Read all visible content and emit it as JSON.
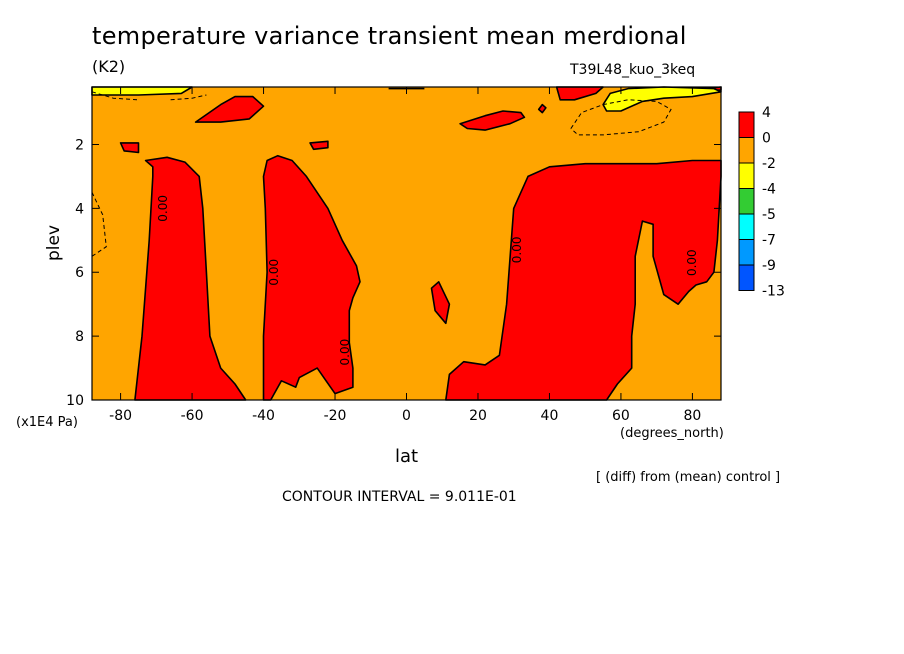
{
  "chart_data": {
    "type": "heatmap",
    "title": "temperature variance transient mean merdional",
    "units_label": "(K2)",
    "run_label": "T39L48_kuo_3keq",
    "xlabel": "lat",
    "ylabel": "plev",
    "x_units": "(degrees_north)",
    "y_units": "(x1E4 Pa)",
    "note": "[ (diff) from (mean) control ]",
    "contour_interval_text": "CONTOUR INTERVAL = 9.011E-01",
    "xlim": [
      -88,
      88
    ],
    "ylim": [
      10,
      0.2
    ],
    "x_ticks": [
      -80,
      -60,
      -40,
      -20,
      0,
      20,
      40,
      60,
      80
    ],
    "x_tick_labels": [
      "-80",
      "-60",
      "-40",
      "-20",
      "0",
      "20",
      "40",
      "60",
      "80"
    ],
    "y_ticks": [
      2,
      4,
      6,
      8,
      10
    ],
    "y_tick_labels": [
      "2",
      "4",
      "6",
      "8",
      "10"
    ],
    "background_level": "0 to -2",
    "colorbar": {
      "labels": [
        "4",
        "0",
        "-2",
        "-4",
        "-5",
        "-7",
        "-9",
        "-13"
      ],
      "colors": [
        "#ff0000",
        "#ffa500",
        "#ffff00",
        "#33cc33",
        "#00ffff",
        "#0099ff",
        "#0055ff"
      ]
    },
    "contour_labels": [
      {
        "text": "0.00",
        "lat": -68,
        "plev": 4.0
      },
      {
        "text": "0.00",
        "lat": -37,
        "plev": 6.0
      },
      {
        "text": "0.00",
        "lat": -17,
        "plev": 8.5
      },
      {
        "text": "0.00",
        "lat": 31,
        "plev": 5.3
      },
      {
        "text": "0.00",
        "lat": 80,
        "plev": 5.7
      }
    ],
    "regions": [
      {
        "level": "positive",
        "color": "#ff0000",
        "points": [
          [
            -76,
            10
          ],
          [
            -74,
            8
          ],
          [
            -72,
            5
          ],
          [
            -71,
            3
          ],
          [
            -71,
            2.7
          ],
          [
            -73,
            2.5
          ],
          [
            -67,
            2.4
          ],
          [
            -62,
            2.55
          ],
          [
            -58,
            3.0
          ],
          [
            -57,
            4.0
          ],
          [
            -56,
            6.0
          ],
          [
            -55,
            8.0
          ],
          [
            -52,
            9.0
          ],
          [
            -48,
            9.5
          ],
          [
            -45,
            10
          ]
        ]
      },
      {
        "level": "positive",
        "color": "#ff0000",
        "points": [
          [
            -40,
            10
          ],
          [
            -40,
            8
          ],
          [
            -39,
            6
          ],
          [
            -39.5,
            4
          ],
          [
            -40,
            3
          ],
          [
            -39,
            2.5
          ],
          [
            -36,
            2.35
          ],
          [
            -32,
            2.5
          ],
          [
            -28,
            3.0
          ],
          [
            -22,
            4.0
          ],
          [
            -18,
            5.0
          ],
          [
            -14,
            5.8
          ],
          [
            -13,
            6.3
          ],
          [
            -15,
            6.8
          ],
          [
            -16,
            7.2
          ],
          [
            -16,
            8.2
          ],
          [
            -15,
            9.0
          ],
          [
            -15,
            9.6
          ],
          [
            -20,
            9.8
          ],
          [
            -25,
            9.0
          ],
          [
            -30,
            9.3
          ],
          [
            -31,
            9.6
          ],
          [
            -35,
            9.4
          ],
          [
            -38,
            10
          ]
        ]
      },
      {
        "level": "positive",
        "color": "#ff0000",
        "points": [
          [
            11,
            10
          ],
          [
            12,
            9.2
          ],
          [
            16,
            8.8
          ],
          [
            22,
            8.9
          ],
          [
            26,
            8.6
          ],
          [
            28,
            7.0
          ],
          [
            30,
            4.0
          ],
          [
            34,
            3.0
          ],
          [
            40,
            2.7
          ],
          [
            50,
            2.6
          ],
          [
            60,
            2.6
          ],
          [
            70,
            2.6
          ],
          [
            80,
            2.5
          ],
          [
            88,
            2.5
          ],
          [
            88,
            3.0
          ],
          [
            87,
            5.0
          ],
          [
            86,
            6.0
          ],
          [
            84,
            6.3
          ],
          [
            81,
            6.4
          ],
          [
            79,
            6.6
          ],
          [
            76,
            7.0
          ],
          [
            72,
            6.7
          ],
          [
            69,
            5.5
          ],
          [
            69,
            4.5
          ],
          [
            66,
            4.4
          ],
          [
            64,
            5.5
          ],
          [
            64,
            7.0
          ],
          [
            63,
            8.0
          ],
          [
            63,
            9.0
          ],
          [
            59,
            9.5
          ],
          [
            56,
            10
          ]
        ]
      },
      {
        "level": "positive",
        "color": "#ff0000",
        "points": [
          [
            7,
            6.5
          ],
          [
            9,
            6.3
          ],
          [
            12,
            7.0
          ],
          [
            11,
            7.6
          ],
          [
            8,
            7.2
          ]
        ]
      },
      {
        "level": "positive",
        "color": "#ff0000",
        "points": [
          [
            -59,
            1.3
          ],
          [
            -52,
            0.75
          ],
          [
            -48,
            0.5
          ],
          [
            -43,
            0.5
          ],
          [
            -40,
            0.8
          ],
          [
            -44,
            1.2
          ],
          [
            -52,
            1.3
          ]
        ]
      },
      {
        "level": "positive",
        "color": "#ff0000",
        "points": [
          [
            -80,
            1.95
          ],
          [
            -75,
            1.95
          ],
          [
            -75,
            2.25
          ],
          [
            -79,
            2.2
          ]
        ]
      },
      {
        "level": "positive",
        "color": "#ff0000",
        "points": [
          [
            -27,
            1.95
          ],
          [
            -22,
            1.9
          ],
          [
            -22,
            2.1
          ],
          [
            -26,
            2.15
          ]
        ]
      },
      {
        "level": "positive",
        "color": "#ff0000",
        "points": [
          [
            15,
            1.35
          ],
          [
            22,
            1.1
          ],
          [
            27,
            0.95
          ],
          [
            32,
            1.0
          ],
          [
            33,
            1.15
          ],
          [
            29,
            1.35
          ],
          [
            22,
            1.55
          ],
          [
            17,
            1.5
          ]
        ]
      },
      {
        "level": "positive",
        "color": "#ff0000",
        "points": [
          [
            37,
            0.9
          ],
          [
            38,
            0.75
          ],
          [
            39,
            0.85
          ],
          [
            38,
            1.0
          ]
        ]
      },
      {
        "level": "positive",
        "color": "#ff0000",
        "points": [
          [
            42,
            0.2
          ],
          [
            55,
            0.2
          ],
          [
            53,
            0.4
          ],
          [
            47,
            0.6
          ],
          [
            43,
            0.6
          ]
        ]
      },
      {
        "level": "positive",
        "color": "#ff0000",
        "points": [
          [
            88,
            0.2
          ],
          [
            88,
            0.3
          ],
          [
            80,
            0.3
          ]
        ]
      },
      {
        "level": "negative",
        "color": "#ffff00",
        "points": [
          [
            -88,
            0.2
          ],
          [
            -60,
            0.2
          ],
          [
            -63,
            0.4
          ],
          [
            -75,
            0.45
          ],
          [
            -88,
            0.45
          ]
        ]
      },
      {
        "level": "negative",
        "color": "#ffff00",
        "points": [
          [
            55,
            0.75
          ],
          [
            57,
            0.4
          ],
          [
            62,
            0.25
          ],
          [
            72,
            0.2
          ],
          [
            86,
            0.25
          ],
          [
            88,
            0.35
          ],
          [
            80,
            0.5
          ],
          [
            72,
            0.55
          ],
          [
            66,
            0.65
          ],
          [
            60,
            0.95
          ],
          [
            56,
            0.95
          ]
        ]
      }
    ],
    "dashed_contours": [
      [
        [
          46,
          1.5
        ],
        [
          49,
          1.0
        ],
        [
          55,
          0.75
        ],
        [
          62,
          0.6
        ],
        [
          70,
          0.65
        ],
        [
          74,
          0.9
        ],
        [
          72,
          1.3
        ],
        [
          65,
          1.6
        ],
        [
          55,
          1.7
        ],
        [
          48,
          1.7
        ],
        [
          46,
          1.5
        ]
      ],
      [
        [
          -88,
          3.5
        ],
        [
          -85,
          4.2
        ],
        [
          -84,
          5.2
        ],
        [
          -88,
          5.5
        ]
      ],
      [
        [
          -88,
          0.35
        ],
        [
          -82,
          0.55
        ],
        [
          -75,
          0.6
        ]
      ],
      [
        [
          -66,
          0.6
        ],
        [
          -60,
          0.55
        ],
        [
          -56,
          0.45
        ]
      ]
    ],
    "solid_contours": [
      [
        [
          -5,
          0.25
        ],
        [
          5,
          0.25
        ]
      ]
    ]
  }
}
